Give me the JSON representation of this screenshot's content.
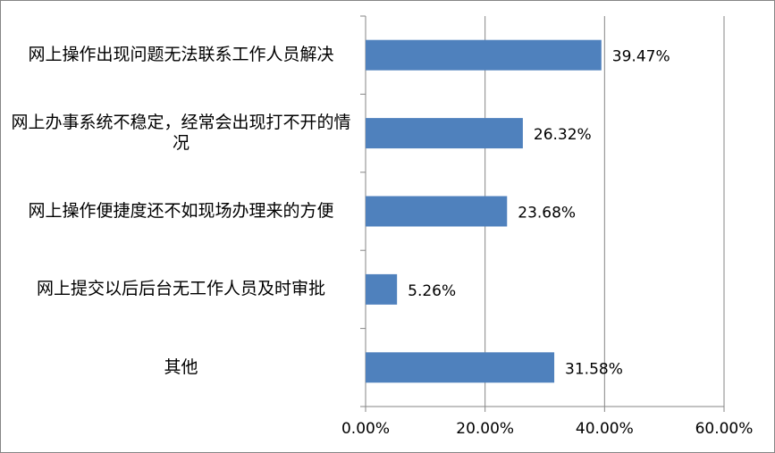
{
  "chart_data": {
    "type": "hbar",
    "categories": [
      "网上操作出现问题无法联系工作人员解决",
      "网上办事系统不稳定，经常会出现打不开的情况",
      "网上操作便捷度还不如现场办理来的方便",
      "网上提交以后后台无工作人员及时审批",
      "其他"
    ],
    "values": [
      39.47,
      26.32,
      23.68,
      5.26,
      31.58
    ],
    "value_labels": [
      "39.47%",
      "26.32%",
      "23.68%",
      "5.26%",
      "31.58%"
    ],
    "color": "#4f81bd",
    "xlim": [
      0,
      60
    ],
    "xticks": [
      {
        "value": 0,
        "label": "0.00%"
      },
      {
        "value": 20,
        "label": "20.00%"
      },
      {
        "value": 40,
        "label": "40.00%"
      },
      {
        "value": 60,
        "label": "60.00%"
      }
    ],
    "grid": true
  }
}
